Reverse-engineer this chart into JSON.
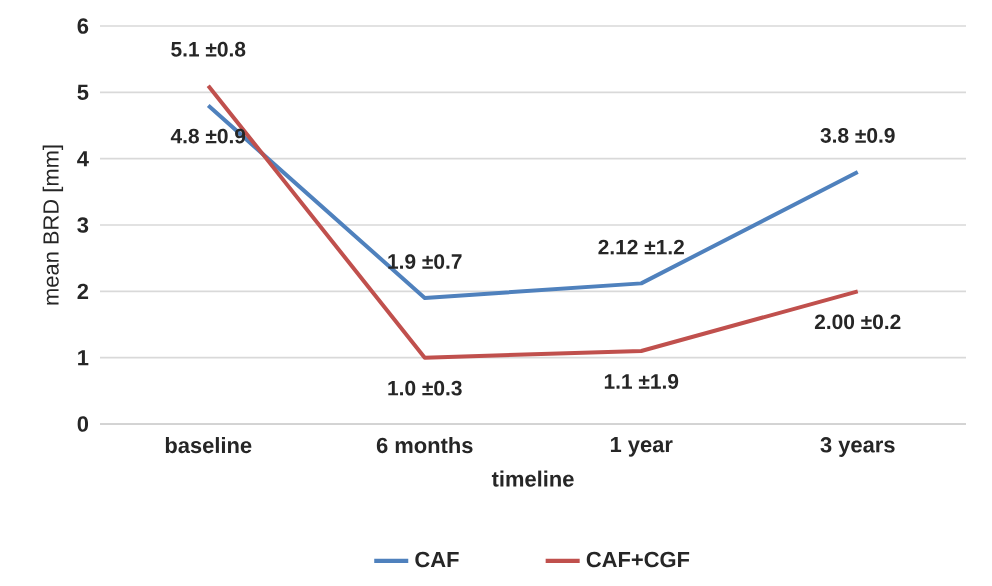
{
  "chart_data": {
    "type": "line",
    "xlabel": "timeline",
    "ylabel": "mean BRD [mm]",
    "categories": [
      "baseline",
      "6 months",
      "1 year",
      "3 years"
    ],
    "series": [
      {
        "name": "CAF",
        "color": "#4f81bd",
        "values": [
          4.8,
          1.9,
          2.12,
          3.8
        ],
        "value_labels": [
          "4.8 ±0.9",
          "1.9 ±0.7",
          "2.12 ±1.2",
          "3.8 ±0.9"
        ]
      },
      {
        "name": "CAF+CGF",
        "color": "#c0504d",
        "values": [
          5.1,
          1.0,
          1.1,
          2.0
        ],
        "value_labels": [
          "5.1 ±0.8",
          "1.0 ±0.3",
          "1.1 ±1.9",
          "2.00 ±0.2"
        ]
      }
    ],
    "ylim": [
      0,
      6
    ],
    "yticks": [
      0,
      1,
      2,
      3,
      4,
      5,
      6
    ],
    "grid": "y",
    "legend": "bottom",
    "marker": "none",
    "line_style": "solid"
  }
}
